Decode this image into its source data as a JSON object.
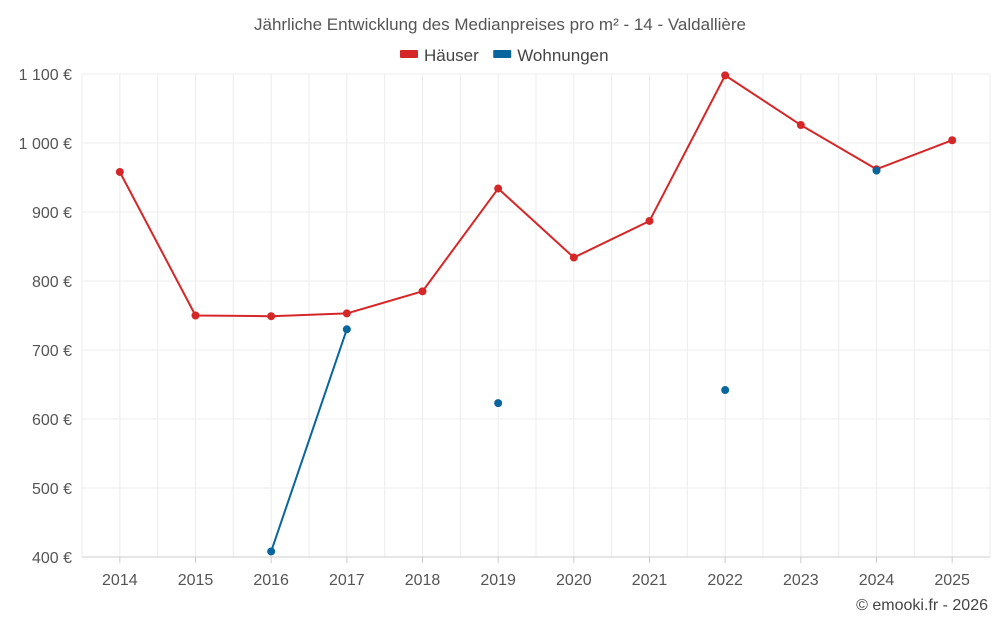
{
  "chart_data": {
    "type": "line",
    "title": "Jährliche Entwicklung des Medianpreises pro m² - 14 - Valdallière",
    "categories": [
      "2014",
      "2015",
      "2016",
      "2017",
      "2018",
      "2019",
      "2020",
      "2021",
      "2022",
      "2023",
      "2024",
      "2025"
    ],
    "series": [
      {
        "name": "Häuser",
        "color": "#d62728",
        "values": [
          958,
          750,
          749,
          753,
          785,
          934,
          834,
          887,
          1098,
          1026,
          962,
          1004
        ]
      },
      {
        "name": "Wohnungen",
        "color": "#08659d",
        "values": [
          null,
          null,
          408,
          730,
          null,
          623,
          null,
          null,
          642,
          null,
          960,
          null
        ]
      }
    ],
    "y_ticks": [
      400,
      500,
      600,
      700,
      800,
      900,
      1000,
      1100
    ],
    "y_tick_labels": [
      "400 €",
      "500 €",
      "600 €",
      "700 €",
      "800 €",
      "900 €",
      "1 000 €",
      "1 100 €"
    ],
    "ylim": [
      400,
      1100
    ],
    "xlabel": "",
    "ylabel": "",
    "grid": true,
    "legend_position": "top-center"
  },
  "footer": {
    "credit": "© emooki.fr - 2026"
  }
}
